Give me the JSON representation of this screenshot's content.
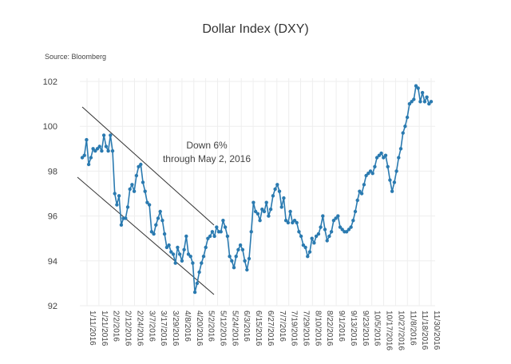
{
  "title": "Dollar Index (DXY)",
  "source": "Source: Bloomberg",
  "annotation": {
    "line1": "Down 6%",
    "line2": "through May 2, 2016"
  },
  "colors": {
    "line": "#2a7ab0",
    "marker": "#2a7ab0",
    "grid": "#eeeeee",
    "channel": "#333333",
    "text": "#444444"
  },
  "chart_data": {
    "type": "line",
    "title": "Dollar Index (DXY)",
    "xlabel": "",
    "ylabel": "",
    "ylim": [
      92,
      102
    ],
    "yticks": [
      92,
      94,
      96,
      98,
      100,
      102
    ],
    "grid": true,
    "legend": "none",
    "xtick_labels": [
      "1/11/2016",
      "1/21/2016",
      "2/2/2016",
      "2/12/2016",
      "2/24/2016",
      "3/7/2016",
      "3/17/2016",
      "3/29/2016",
      "4/8/2016",
      "4/20/2016",
      "5/2/2016",
      "5/12/2016",
      "5/24/2016",
      "6/3/2016",
      "6/15/2016",
      "6/27/2016",
      "7/7/2016",
      "7/19/2016",
      "7/29/2016",
      "8/10/2016",
      "8/22/2016",
      "9/1/2016",
      "9/13/2016",
      "9/23/2016",
      "10/5/2016",
      "10/17/2016",
      "10/27/2016",
      "11/8/2016",
      "11/18/2016",
      "11/30/2016"
    ],
    "series": [
      {
        "values": [
          98.6,
          98.7,
          99.4,
          98.3,
          98.6,
          99.0,
          98.9,
          99.0,
          99.1,
          98.9,
          99.6,
          99.1,
          98.9,
          99.6,
          98.9,
          97.0,
          96.5,
          96.9,
          95.6,
          95.9,
          95.9,
          96.4,
          97.2,
          97.4,
          97.1,
          97.8,
          98.2,
          98.3,
          97.5,
          97.1,
          96.6,
          96.5,
          95.3,
          95.2,
          95.6,
          95.9,
          96.2,
          95.8,
          95.2,
          94.6,
          94.7,
          94.4,
          94.3,
          93.9,
          94.6,
          94.3,
          94.0,
          94.5,
          95.1,
          94.3,
          94.2,
          93.9,
          92.6,
          93.0,
          93.5,
          93.9,
          94.2,
          94.6,
          95.0,
          95.1,
          95.3,
          95.1,
          95.5,
          95.3,
          95.3,
          95.8,
          95.5,
          95.1,
          94.2,
          94.0,
          93.7,
          94.2,
          94.5,
          94.7,
          94.5,
          94.0,
          93.6,
          94.1,
          95.3,
          96.6,
          96.2,
          96.1,
          95.8,
          96.3,
          96.2,
          96.6,
          96.0,
          96.3,
          96.9,
          97.2,
          97.4,
          97.1,
          96.4,
          96.8,
          95.8,
          95.7,
          96.2,
          95.7,
          95.8,
          95.7,
          95.3,
          95.1,
          94.7,
          94.6,
          94.2,
          94.4,
          95.0,
          94.8,
          95.1,
          95.2,
          95.5,
          96.0,
          95.4,
          94.9,
          95.1,
          95.3,
          95.8,
          95.9,
          96.0,
          95.5,
          95.4,
          95.3,
          95.3,
          95.4,
          95.5,
          95.8,
          96.2,
          96.7,
          97.1,
          97.0,
          97.4,
          97.8,
          97.9,
          98.0,
          97.9,
          98.2,
          98.6,
          98.7,
          98.8,
          98.6,
          98.7,
          98.2,
          97.6,
          97.1,
          97.5,
          98.0,
          98.6,
          99.0,
          99.7,
          100.0,
          100.4,
          101.0,
          101.1,
          101.2,
          101.8,
          101.7,
          101.1,
          101.5,
          101.1,
          101.3,
          101.0,
          101.1
        ]
      }
    ]
  }
}
